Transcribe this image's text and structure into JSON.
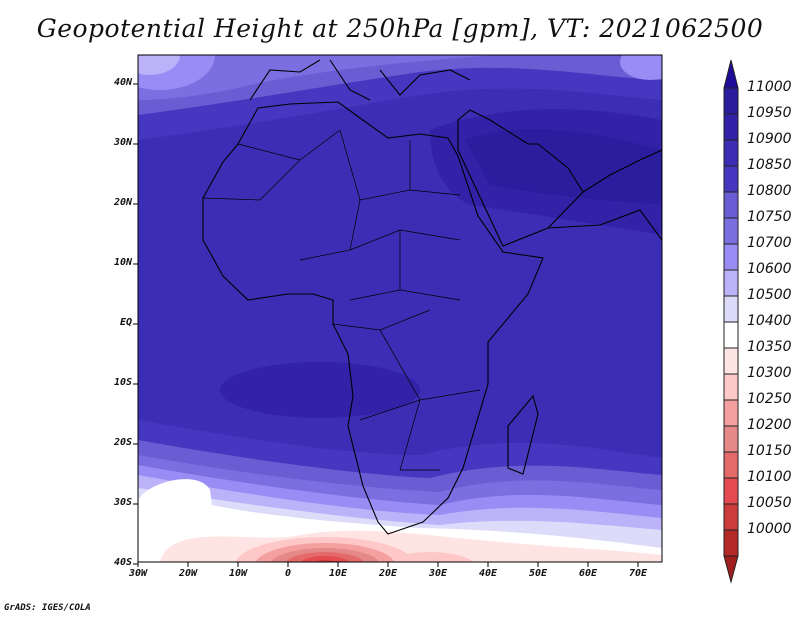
{
  "title": "Geopotential Height at 250hPa [gpm], VT: 2021062500",
  "credit": "GrADS: IGES/COLA",
  "map": {
    "lat_labels": [
      "40N",
      "30N",
      "20N",
      "10N",
      "EQ",
      "10S",
      "20S",
      "30S",
      "40S"
    ],
    "lon_labels": [
      "30W",
      "20W",
      "10W",
      "0",
      "10E",
      "20E",
      "30E",
      "40E",
      "50E",
      "60E",
      "70E"
    ]
  },
  "colorbar": {
    "labels": [
      "11000",
      "10950",
      "10900",
      "10850",
      "10800",
      "10750",
      "10700",
      "10600",
      "10500",
      "10400",
      "10350",
      "10300",
      "10250",
      "10200",
      "10150",
      "10100",
      "10050",
      "10000"
    ],
    "colors": [
      "#1e0c98",
      "#2a1e9e",
      "#3322a8",
      "#3c2eb4",
      "#4537c0",
      "#6a5cd2",
      "#7a6ee0",
      "#9a8cf5",
      "#bcb2fa",
      "#dcdcfa",
      "#ffffff",
      "#ffe4e4",
      "#ffc8c8",
      "#f5a0a0",
      "#e48888",
      "#e46a6a",
      "#e44a50",
      "#cc3c3c",
      "#b42828",
      "#a01e1e"
    ]
  }
}
